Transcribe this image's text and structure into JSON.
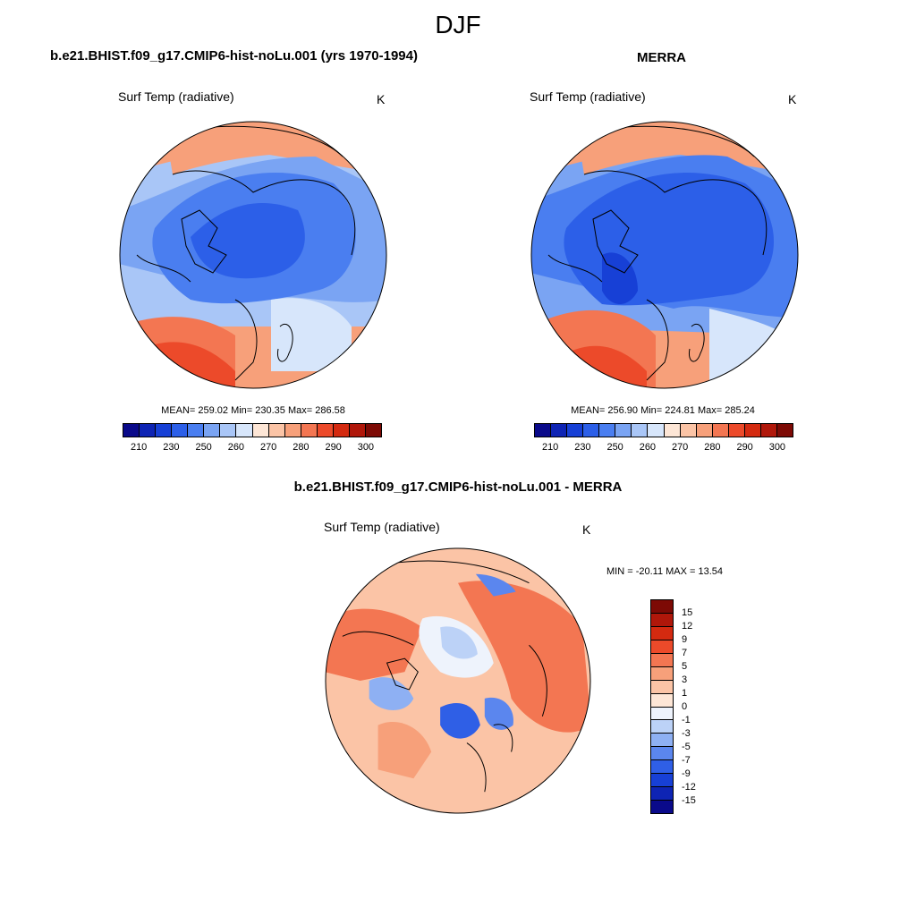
{
  "figure": {
    "season": "DJF",
    "top_left_title": "b.e21.BHIST.f09_g17.CMIP6-hist-noLu.001 (yrs 1970-1994)",
    "top_right_title": "MERRA",
    "bottom_title": "b.e21.BHIST.f09_g17.CMIP6-hist-noLu.001 - MERRA"
  },
  "panels": {
    "model": {
      "variable": "Surf Temp (radiative)",
      "units": "K",
      "stats": "MEAN= 259.02  Min= 230.35  Max= 286.58"
    },
    "obs": {
      "variable": "Surf Temp (radiative)",
      "units": "K",
      "stats": "MEAN= 256.90  Min= 224.81  Max= 285.24"
    },
    "diff": {
      "variable": "Surf Temp (radiative)",
      "units": "K",
      "stats": "MIN = -20.11 MAX =  13.54"
    }
  },
  "abs_colorbar": {
    "tick_labels": [
      "210",
      "230",
      "250",
      "260",
      "270",
      "280",
      "290",
      "300"
    ],
    "colors": [
      "#0a0a8a",
      "#0e24b4",
      "#1740d6",
      "#2c5fe8",
      "#4a7ef0",
      "#7aa4f3",
      "#a9c6f7",
      "#d7e6fb",
      "#fde6d6",
      "#fbc4a6",
      "#f7a07a",
      "#f37652",
      "#ec4a2a",
      "#d42a10",
      "#b0170a",
      "#7d0a05"
    ]
  },
  "diff_colorbar": {
    "tick_labels": [
      "15",
      "12",
      "9",
      "7",
      "5",
      "3",
      "1",
      "0",
      "-1",
      "-3",
      "-5",
      "-7",
      "-9",
      "-12",
      "-15"
    ],
    "colors": [
      "#7d0a05",
      "#b0170a",
      "#d42a10",
      "#ec4a2a",
      "#f37652",
      "#f7a07a",
      "#fbc4a6",
      "#fde6d6",
      "#eef3fc",
      "#bcd2f7",
      "#8eb0f3",
      "#5b86ee",
      "#2f5fe6",
      "#1740d6",
      "#0e24b4",
      "#0a0a8a"
    ]
  },
  "map_colors": {
    "land_outline": "#000000",
    "polar_cold": "#2c5fe8",
    "mid_cold": "#4a7ef0",
    "cool": "#a9c6f7",
    "light": "#d7e6fb",
    "warm": "#f7a07a",
    "hot": "#ec4a2a",
    "diff_warm": "#f37652",
    "diff_light": "#fbc4a6",
    "diff_cool": "#bcd2f7",
    "diff_cold": "#2f5fe6"
  }
}
